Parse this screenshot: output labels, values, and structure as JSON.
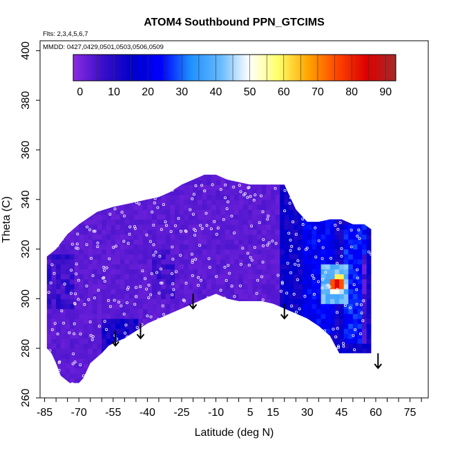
{
  "chart_data": {
    "type": "heatmap",
    "title": "ATOM4 Southbound PPN_GTCIMS",
    "flights_note": "Flts: 2,3,4,5,6,7",
    "dates_note": "MMDD: 0427,0429,0501,0503,0506,0509",
    "xlabel": "Latitude (deg N)",
    "ylabel": "Theta (C)",
    "xlim": [
      -87,
      83
    ],
    "ylim": [
      260,
      404
    ],
    "x_ticks": [
      -85,
      -70,
      -55,
      -40,
      -25,
      -10,
      5,
      15,
      30,
      45,
      60,
      75
    ],
    "x_minor_every": 5,
    "y_ticks": [
      260,
      280,
      300,
      320,
      340,
      360,
      380,
      400
    ],
    "colorbar": {
      "ticks": [
        0,
        10,
        20,
        30,
        40,
        50,
        60,
        70,
        80,
        90
      ],
      "range": [
        -2,
        93
      ],
      "colors": [
        "#8a2be2",
        "#3a0fc8",
        "#0000c8",
        "#0000ff",
        "#1e90ff",
        "#63b8ff",
        "#ffffff",
        "#ffff66",
        "#ffa500",
        "#ff4500",
        "#dd0000",
        "#a52a2a"
      ]
    },
    "region": {
      "top_boundary": [
        [
          -84,
          317
        ],
        [
          -80,
          320
        ],
        [
          -75,
          326
        ],
        [
          -70,
          330
        ],
        [
          -62,
          335
        ],
        [
          -55,
          337
        ],
        [
          -50,
          338
        ],
        [
          -40,
          340
        ],
        [
          -35,
          341
        ],
        [
          -30,
          343
        ],
        [
          -25,
          346
        ],
        [
          -20,
          348
        ],
        [
          -15,
          350
        ],
        [
          -10,
          350
        ],
        [
          -5,
          348
        ],
        [
          0,
          347
        ],
        [
          5,
          346
        ],
        [
          15,
          346
        ],
        [
          20,
          346
        ],
        [
          22,
          342
        ],
        [
          25,
          336
        ],
        [
          30,
          331
        ],
        [
          35,
          331
        ],
        [
          40,
          332
        ],
        [
          45,
          332
        ],
        [
          50,
          330
        ],
        [
          55,
          330
        ],
        [
          58,
          328
        ]
      ],
      "bottom_boundary": [
        [
          58,
          278
        ],
        [
          44,
          278
        ],
        [
          40,
          285
        ],
        [
          35,
          289
        ],
        [
          30,
          292
        ],
        [
          25,
          294
        ],
        [
          20,
          296
        ],
        [
          15,
          298
        ],
        [
          10,
          299
        ],
        [
          5,
          299
        ],
        [
          0,
          299
        ],
        [
          -5,
          300
        ],
        [
          -10,
          302
        ],
        [
          -15,
          300
        ],
        [
          -20,
          298
        ],
        [
          -25,
          296
        ],
        [
          -30,
          294
        ],
        [
          -35,
          292
        ],
        [
          -40,
          290
        ],
        [
          -45,
          287
        ],
        [
          -50,
          284
        ],
        [
          -55,
          282
        ],
        [
          -57,
          281
        ],
        [
          -60,
          278
        ],
        [
          -65,
          274
        ],
        [
          -68,
          268
        ],
        [
          -70,
          266
        ],
        [
          -74,
          266
        ],
        [
          -78,
          269
        ],
        [
          -80,
          274
        ],
        [
          -82,
          278
        ],
        [
          -84,
          280
        ]
      ],
      "base_value": 3
    },
    "hotspots": [
      {
        "lat": 42,
        "theta": 305,
        "value": 90
      },
      {
        "lat": 43,
        "theta": 306,
        "value": 75
      },
      {
        "lat": 41,
        "theta": 304,
        "value": 66
      },
      {
        "lat": 44,
        "theta": 304,
        "value": 60
      }
    ],
    "field_zones": [
      {
        "lat_min": 18,
        "lat_max": 58,
        "theta_min": 278,
        "theta_max": 346,
        "value": 14
      },
      {
        "lat_min": 28,
        "lat_max": 42,
        "theta_min": 285,
        "theta_max": 332,
        "value": 22
      },
      {
        "lat_min": 46,
        "lat_max": 55,
        "theta_min": 282,
        "theta_max": 330,
        "value": 25
      },
      {
        "lat_min": 36,
        "lat_max": 48,
        "theta_min": 298,
        "theta_max": 313,
        "value": 40
      },
      {
        "lat_min": 53,
        "lat_max": 56,
        "theta_min": 282,
        "theta_max": 318,
        "value": 5
      },
      {
        "lat_min": -60,
        "lat_max": -45,
        "theta_min": 278,
        "theta_max": 292,
        "value": 12
      },
      {
        "lat_min": -38,
        "lat_max": -28,
        "theta_min": 300,
        "theta_max": 320,
        "value": 6
      },
      {
        "lat_min": -84,
        "lat_max": -72,
        "theta_min": 295,
        "theta_max": 318,
        "value": 7
      }
    ],
    "arrows": [
      {
        "lat": -54,
        "theta": 287
      },
      {
        "lat": -43,
        "theta": 290
      },
      {
        "lat": -20,
        "theta": 302
      },
      {
        "lat": 20,
        "theta": 298
      },
      {
        "lat": 61,
        "theta": 278
      }
    ]
  }
}
